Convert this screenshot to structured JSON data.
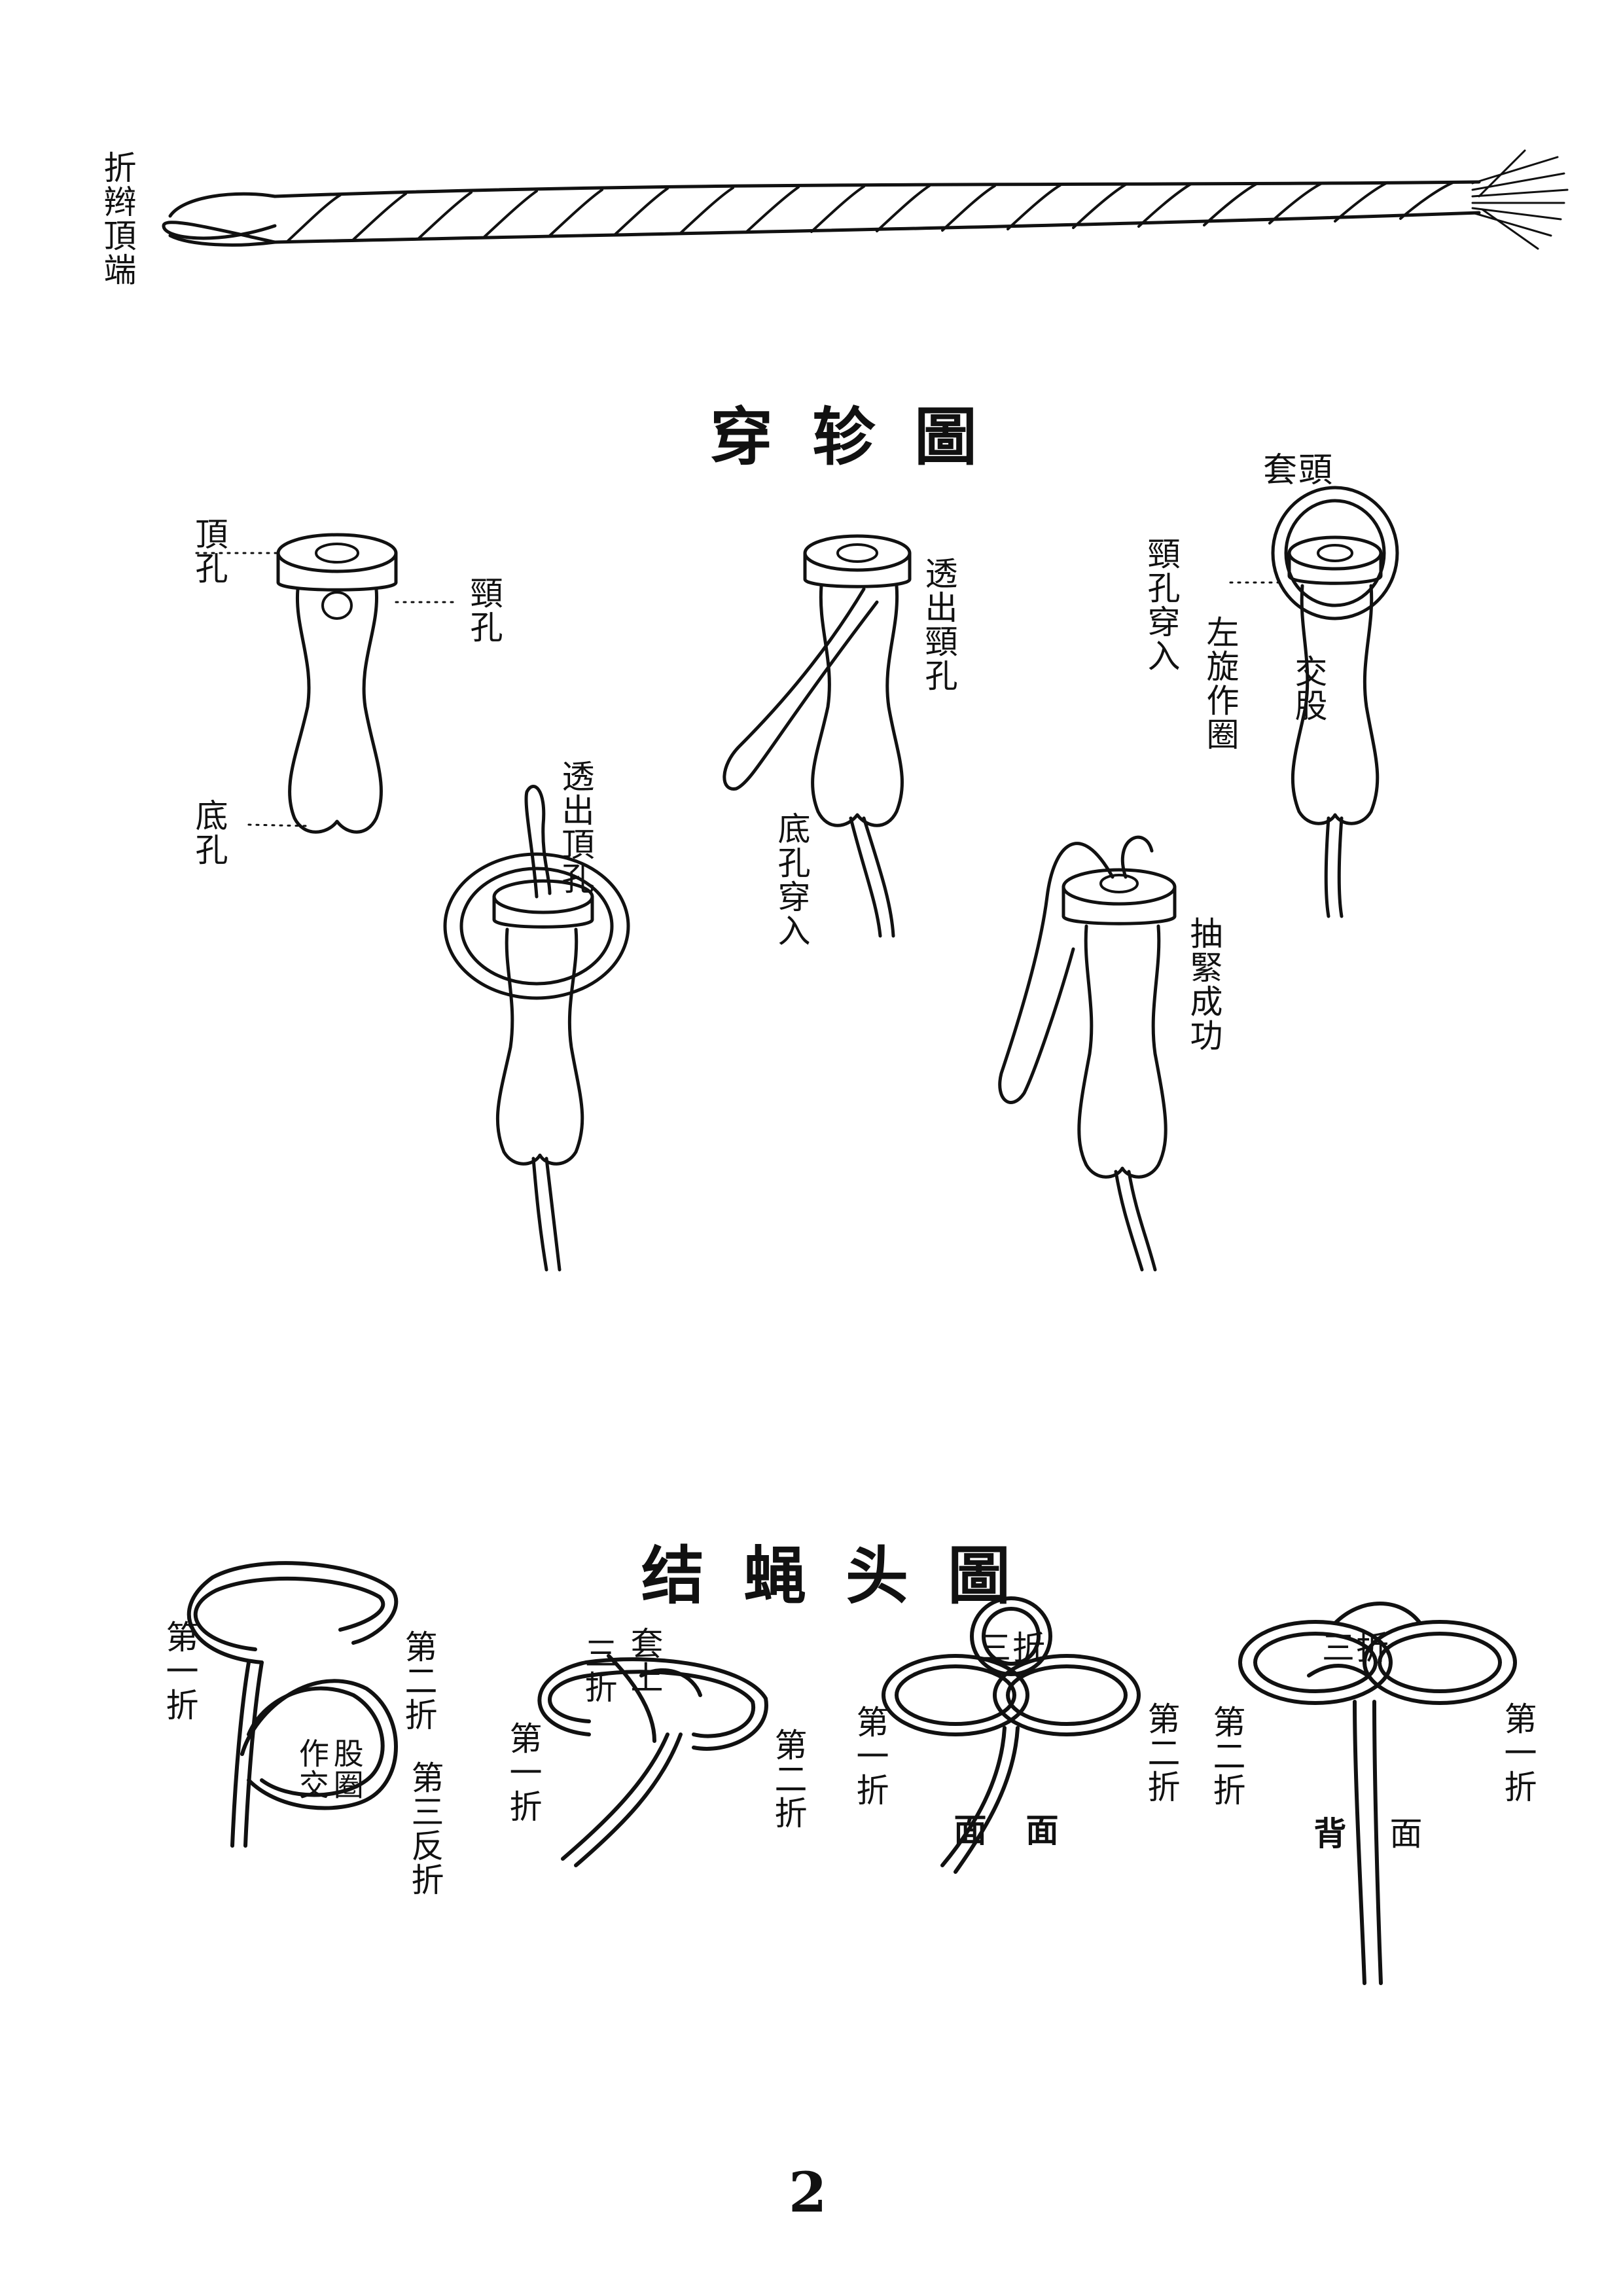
{
  "top_rope": {
    "label": "折辫頂端"
  },
  "section1": {
    "title": "穿轸圖",
    "labels": {
      "top_hole": "頂孔",
      "neck_hole": "頸孔",
      "bottom_hole": "底孔",
      "neck_out": "透出頸孔",
      "bottom_in": "底孔穿入",
      "loop_head": "套頭",
      "neck_in": "頸孔穿入",
      "left_loop": "左旋作圈",
      "cross": "交股",
      "top_out": "透出頂孔",
      "pull_tight": "抽緊成功"
    }
  },
  "section2": {
    "title": "结蝇头圖",
    "labels": {
      "k1_first": "第一折",
      "k1_second": "第二折",
      "k1_cross": "作交股圈",
      "k1_third": "第三反折",
      "k2_third": "三折",
      "k2_loop": "套上",
      "k2_first": "第一折",
      "k2_second": "第二折",
      "k3_third": "三折",
      "k3_first": "第一折",
      "k3_second": "第二折",
      "k3_face_a": "面",
      "k3_face_b": "面",
      "k4_third": "三折",
      "k4_second": "第二折",
      "k4_first": "第一折",
      "k4_back": "背",
      "k4_face": "面"
    }
  },
  "page_number": "2"
}
